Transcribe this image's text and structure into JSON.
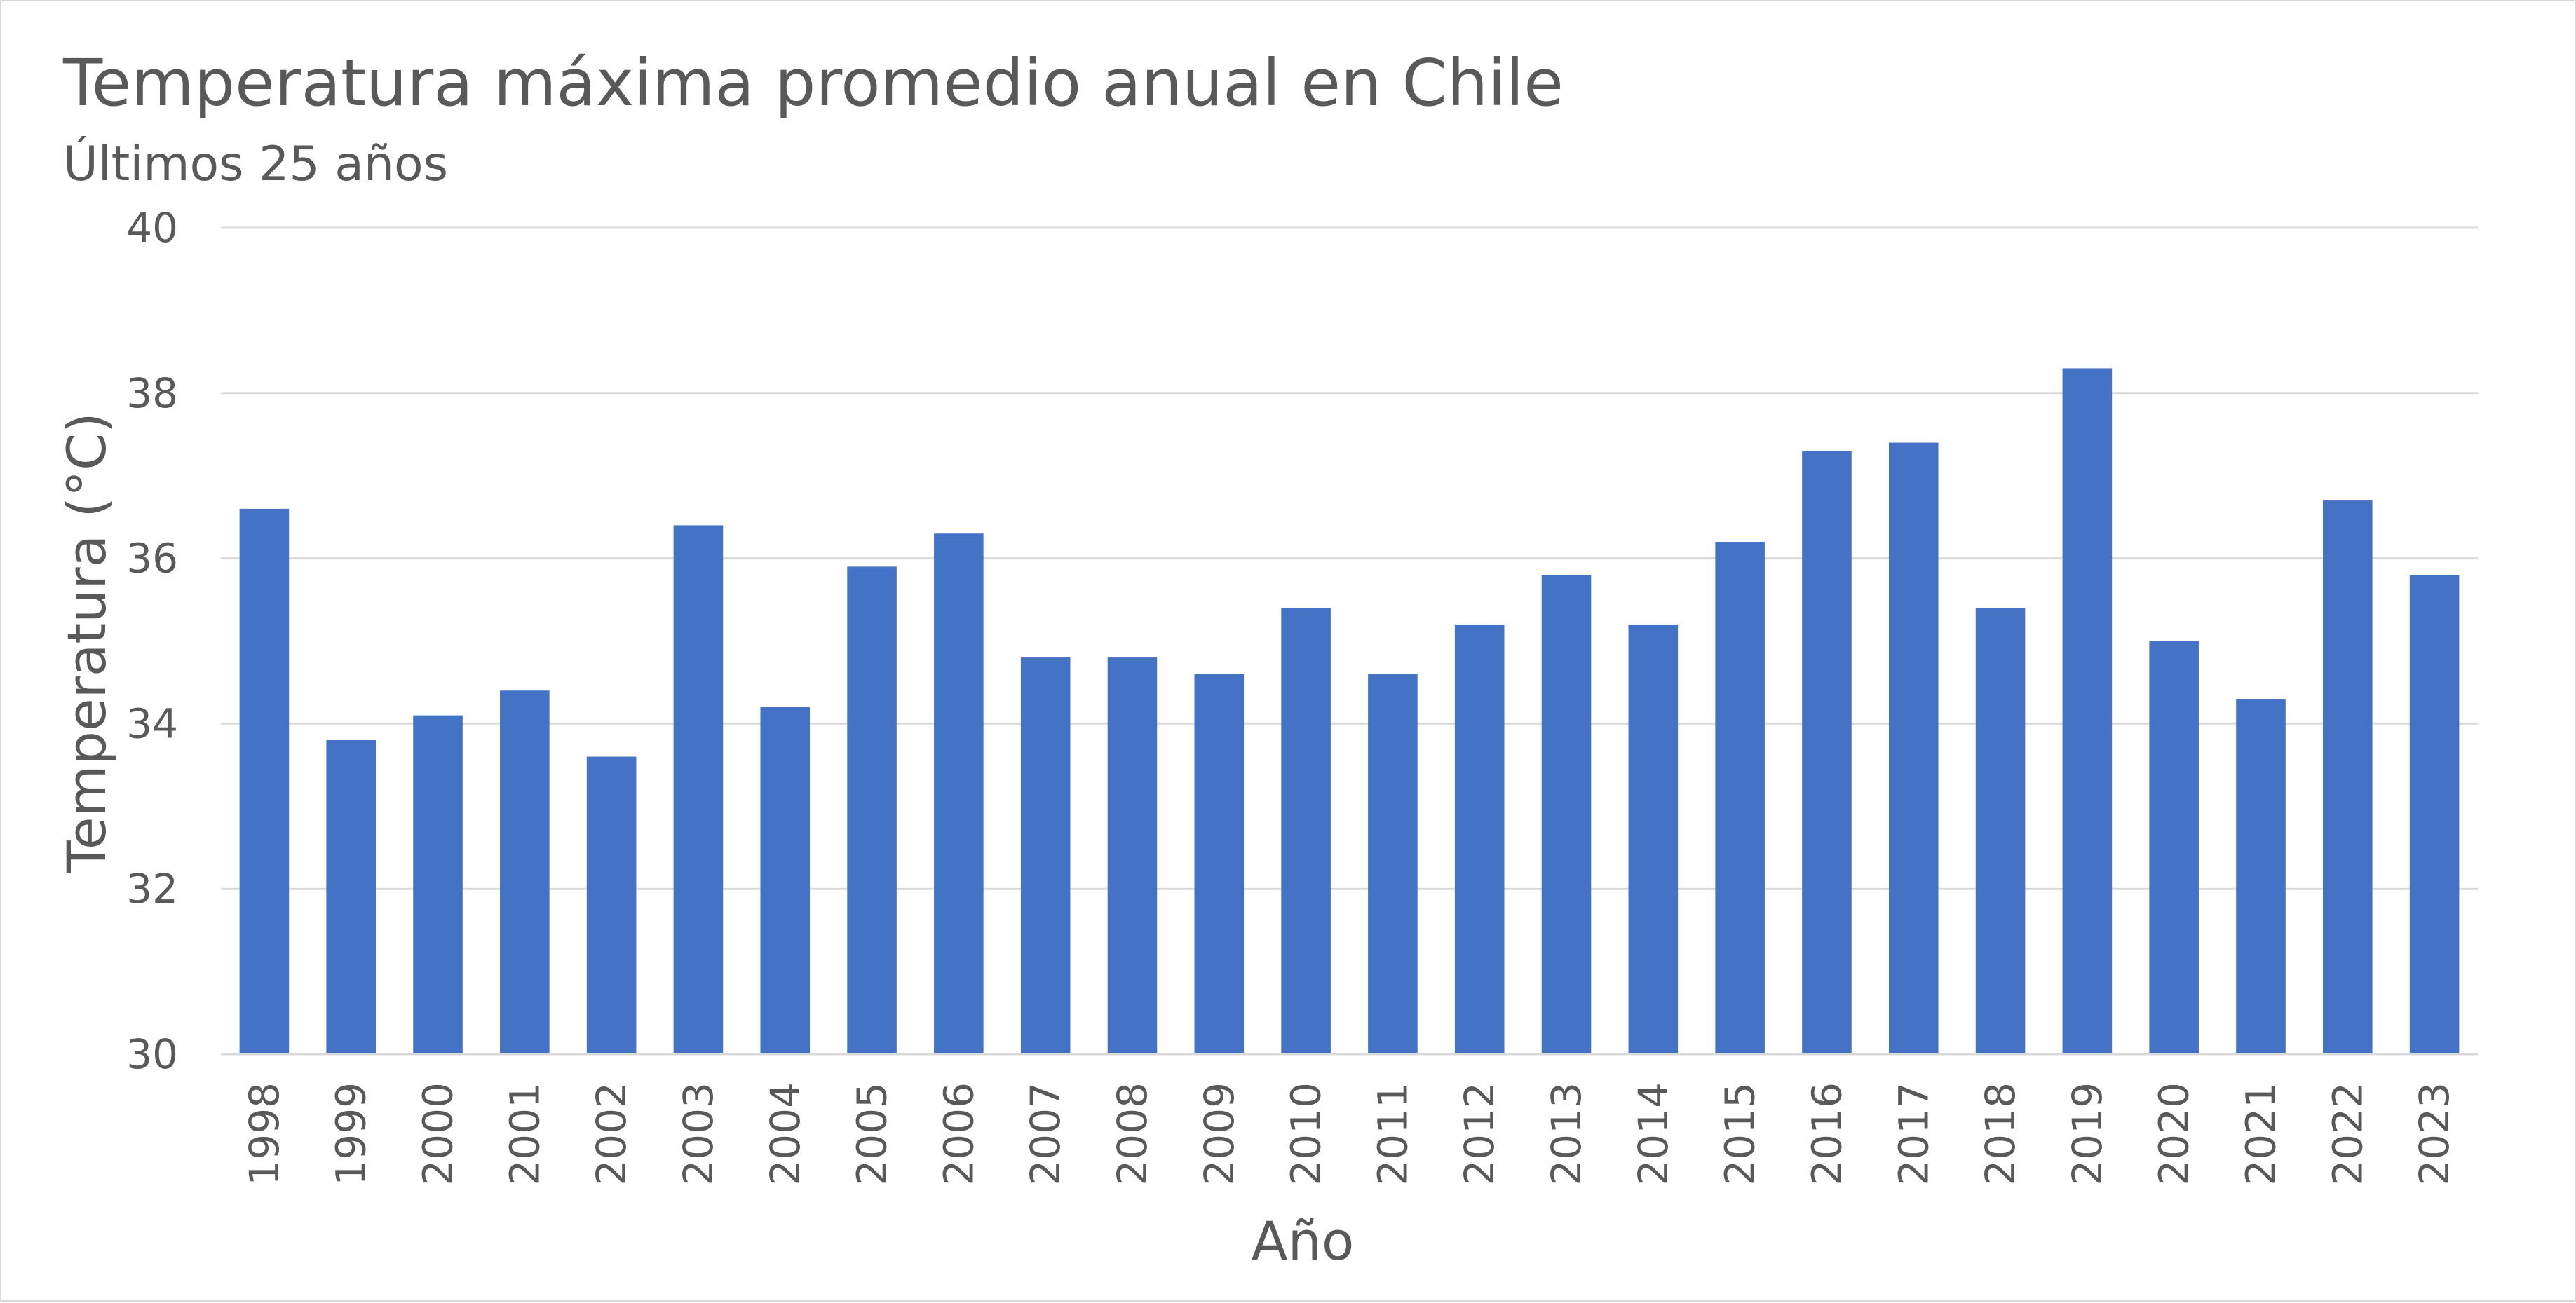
{
  "chart_data": {
    "type": "bar",
    "title": "Temperatura máxima promedio anual en Chile",
    "subtitle": "Últimos 25 años",
    "xlabel": "Año",
    "ylabel": "Temperatura (°C)",
    "ylim": [
      30,
      40
    ],
    "yticks": [
      30,
      32,
      34,
      36,
      38,
      40
    ],
    "grid": true,
    "legend": "none",
    "bar_color": "#4472C4",
    "gridline_color": "#d9d9d9",
    "text_color": "#595959",
    "categories": [
      "1998",
      "1999",
      "2000",
      "2001",
      "2002",
      "2003",
      "2004",
      "2005",
      "2006",
      "2007",
      "2008",
      "2009",
      "2010",
      "2011",
      "2012",
      "2013",
      "2014",
      "2015",
      "2016",
      "2017",
      "2018",
      "2019",
      "2020",
      "2021",
      "2022",
      "2023"
    ],
    "values": [
      36.6,
      33.8,
      34.1,
      34.4,
      33.6,
      36.4,
      34.2,
      35.9,
      36.3,
      34.8,
      34.8,
      34.6,
      35.4,
      34.6,
      35.2,
      35.8,
      35.2,
      36.2,
      37.3,
      37.4,
      35.4,
      38.3,
      35.0,
      34.3,
      36.7,
      35.8
    ]
  }
}
